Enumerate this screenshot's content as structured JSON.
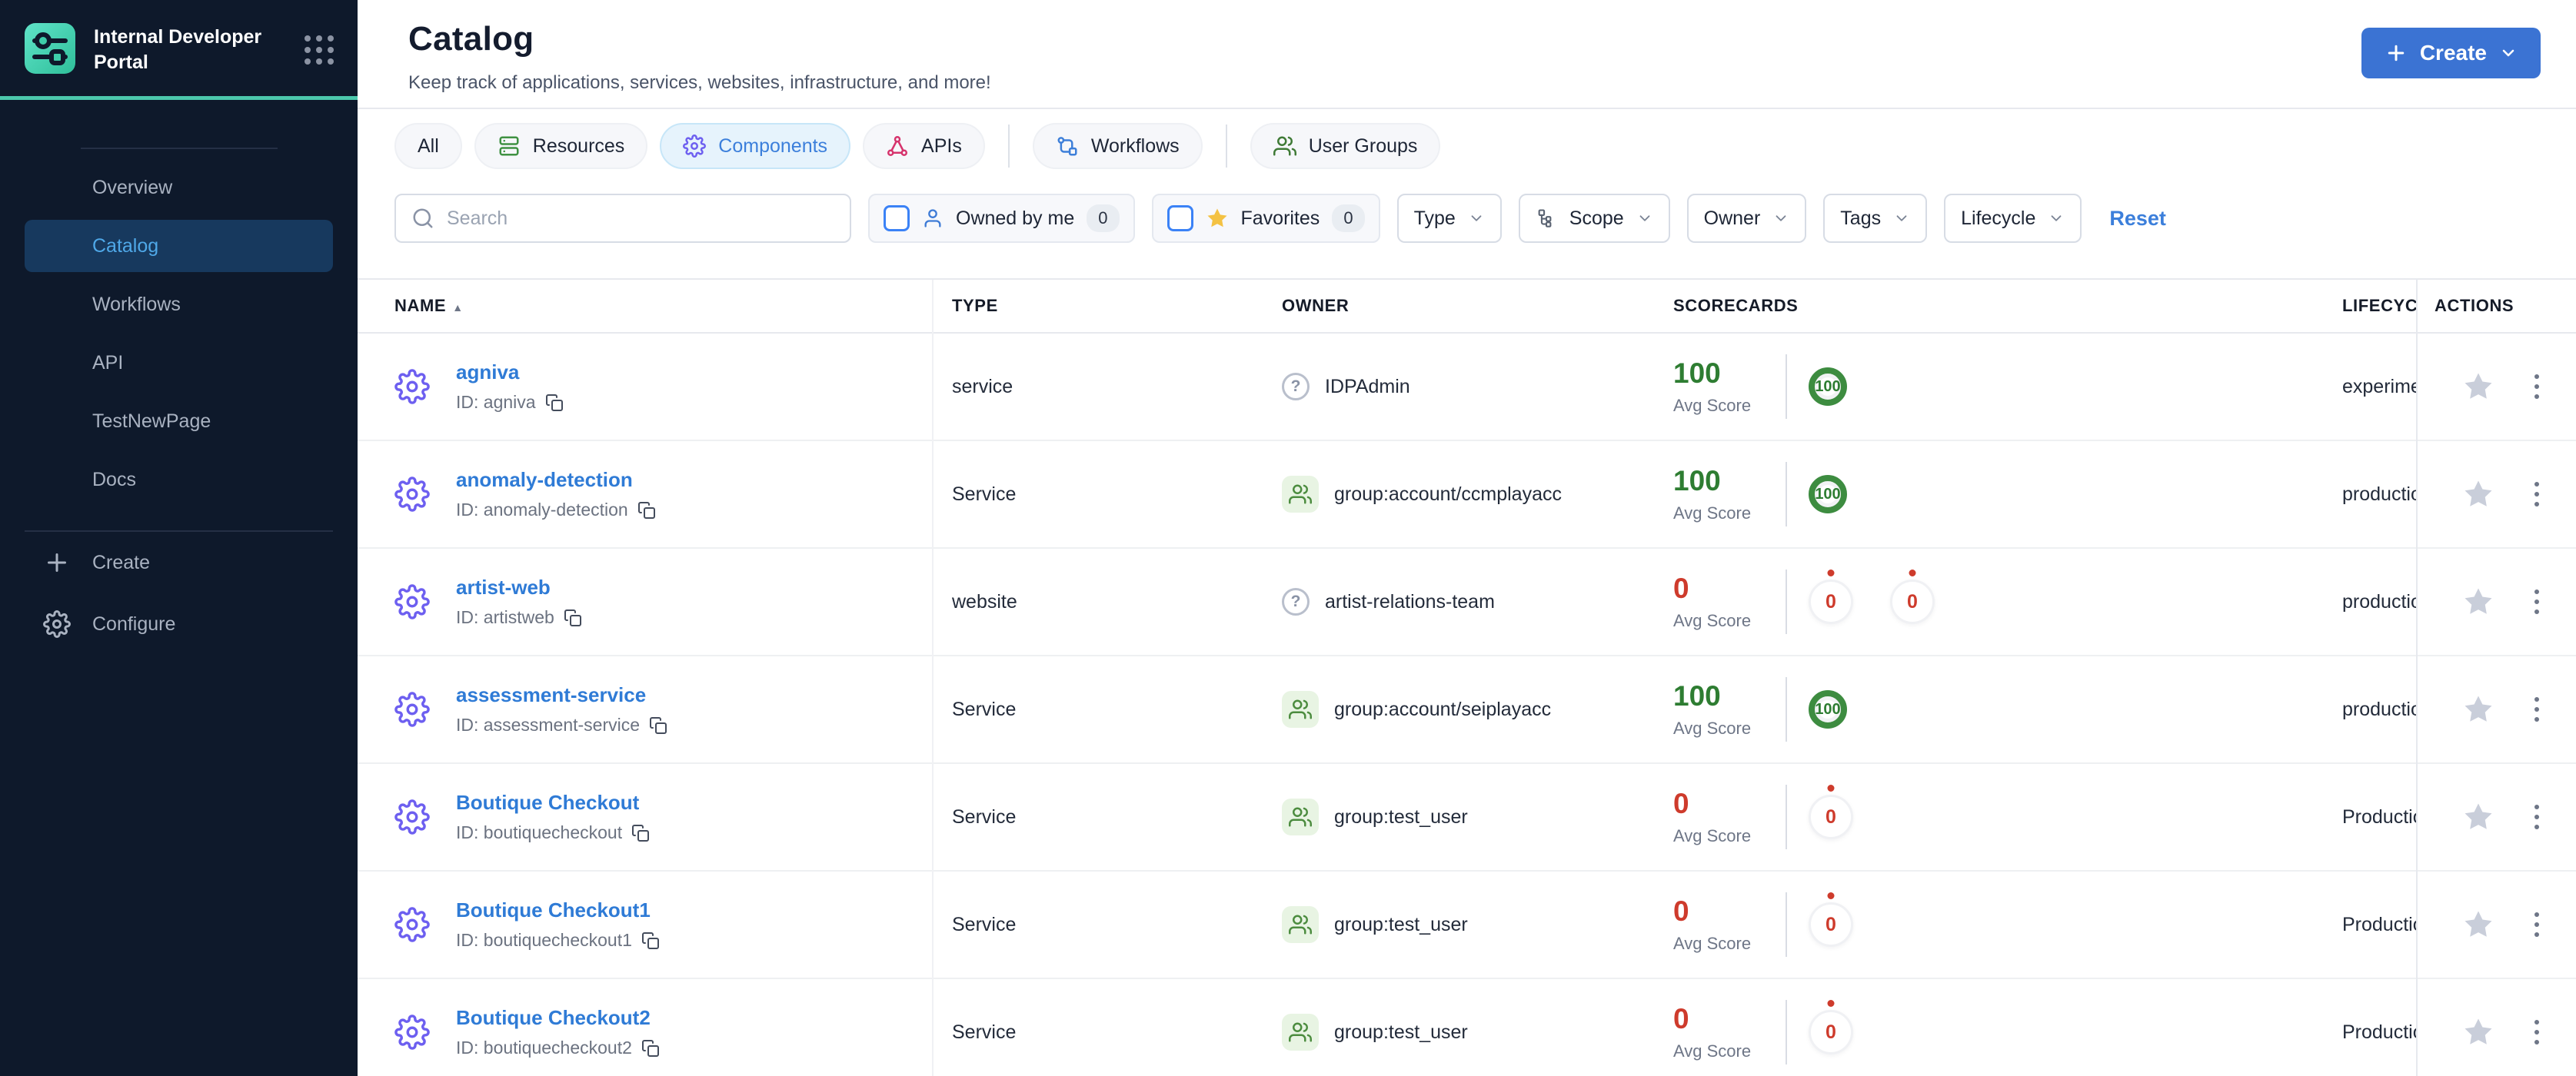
{
  "sidebar": {
    "title": "Internal Developer Portal",
    "nav": [
      {
        "label": "Overview",
        "active": false
      },
      {
        "label": "Catalog",
        "active": true
      },
      {
        "label": "Workflows",
        "active": false
      },
      {
        "label": "API",
        "active": false
      },
      {
        "label": "TestNewPage",
        "active": false
      },
      {
        "label": "Docs",
        "active": false
      }
    ],
    "footer": [
      {
        "label": "Create"
      },
      {
        "label": "Configure"
      }
    ]
  },
  "header": {
    "title": "Catalog",
    "subtitle": "Keep track of applications, services, websites, infrastructure, and more!",
    "create_label": "Create"
  },
  "tabs": [
    {
      "label": "All",
      "active": false
    },
    {
      "label": "Resources",
      "active": false
    },
    {
      "label": "Components",
      "active": true
    },
    {
      "label": "APIs",
      "active": false
    },
    {
      "label": "Workflows",
      "active": false
    },
    {
      "label": "User Groups",
      "active": false
    }
  ],
  "filters": {
    "search_placeholder": "Search",
    "owned_by_me": {
      "label": "Owned by me",
      "count": "0"
    },
    "favorites": {
      "label": "Favorites",
      "count": "0"
    },
    "dropdowns": [
      {
        "label": "Type"
      },
      {
        "label": "Scope"
      },
      {
        "label": "Owner"
      },
      {
        "label": "Tags"
      },
      {
        "label": "Lifecycle"
      }
    ],
    "reset_label": "Reset"
  },
  "table": {
    "columns": {
      "name": "NAME",
      "type": "TYPE",
      "owner": "OWNER",
      "scorecards": "SCORECARDS",
      "lifecycle": "LIFECYCLE",
      "actions": "ACTIONS"
    },
    "avg_score_label": "Avg Score",
    "rows": [
      {
        "name": "agniva",
        "id": "ID: agniva",
        "type": "service",
        "owner": {
          "kind": "user",
          "label": "IDPAdmin"
        },
        "avg_score": {
          "value": "100",
          "status": "good"
        },
        "circles": [
          {
            "value": "100",
            "status": "good"
          }
        ],
        "lifecycle": "experimental"
      },
      {
        "name": "anomaly-detection",
        "id": "ID: anomaly-detection",
        "type": "Service",
        "owner": {
          "kind": "group",
          "label": "group:account/ccmplayacc"
        },
        "avg_score": {
          "value": "100",
          "status": "good"
        },
        "circles": [
          {
            "value": "100",
            "status": "good"
          }
        ],
        "lifecycle": "production"
      },
      {
        "name": "artist-web",
        "id": "ID: artistweb",
        "type": "website",
        "owner": {
          "kind": "user",
          "label": "artist-relations-team"
        },
        "avg_score": {
          "value": "0",
          "status": "bad"
        },
        "circles": [
          {
            "value": "0",
            "status": "bad"
          },
          {
            "value": "0",
            "status": "bad"
          }
        ],
        "lifecycle": "production"
      },
      {
        "name": "assessment-service",
        "id": "ID: assessment-service",
        "type": "Service",
        "owner": {
          "kind": "group",
          "label": "group:account/seiplayacc"
        },
        "avg_score": {
          "value": "100",
          "status": "good"
        },
        "circles": [
          {
            "value": "100",
            "status": "good"
          }
        ],
        "lifecycle": "production"
      },
      {
        "name": "Boutique Checkout",
        "id": "ID: boutiquecheckout",
        "type": "Service",
        "owner": {
          "kind": "group",
          "label": "group:test_user"
        },
        "avg_score": {
          "value": "0",
          "status": "bad"
        },
        "circles": [
          {
            "value": "0",
            "status": "bad"
          }
        ],
        "lifecycle": "Production"
      },
      {
        "name": "Boutique Checkout1",
        "id": "ID: boutiquecheckout1",
        "type": "Service",
        "owner": {
          "kind": "group",
          "label": "group:test_user"
        },
        "avg_score": {
          "value": "0",
          "status": "bad"
        },
        "circles": [
          {
            "value": "0",
            "status": "bad"
          }
        ],
        "lifecycle": "Production"
      },
      {
        "name": "Boutique Checkout2",
        "id": "ID: boutiquecheckout2",
        "type": "Service",
        "owner": {
          "kind": "group",
          "label": "group:test_user"
        },
        "avg_score": {
          "value": "0",
          "status": "bad"
        },
        "circles": [
          {
            "value": "0",
            "status": "bad"
          }
        ],
        "lifecycle": "Production"
      }
    ]
  },
  "colors": {
    "sidebar_bg": "#0E192B",
    "sidebar_active_bg": "#17395E",
    "sidebar_active_text": "#4FA8E8",
    "teal_accent": "#4CC8AC",
    "primary_button_blue": "#3B73D3",
    "link_blue": "#2F7BD6",
    "active_tab_bg": "#E6F3FC",
    "active_tab_text": "#3C7FDB",
    "score_good_green": "#2E7D32",
    "score_bad_red": "#CE3B2C",
    "group_chip_bg": "#E8F4E3",
    "group_icon_green": "#4C8C3F",
    "favorites_star_yellow": "#F4C243",
    "checkbox_blue": "#3B82F6"
  }
}
